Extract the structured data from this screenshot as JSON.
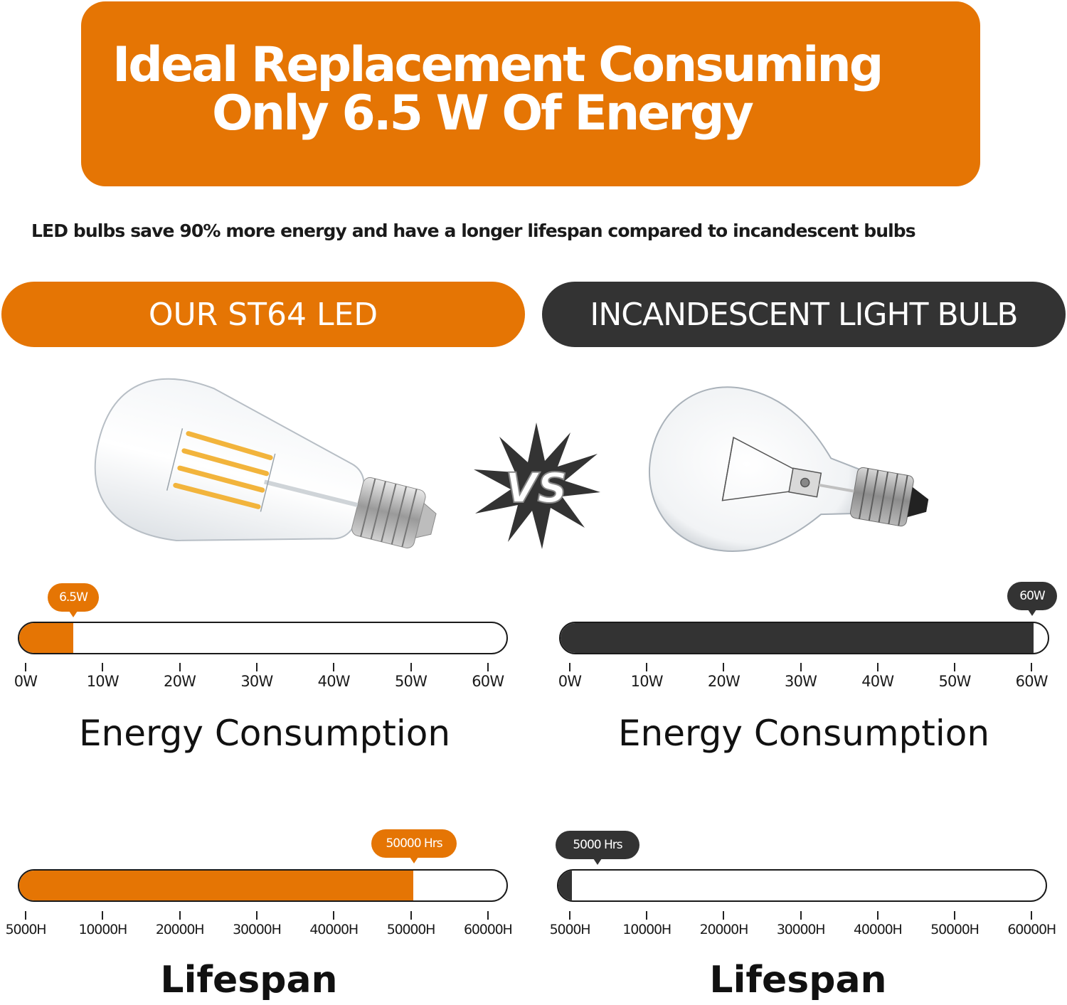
{
  "header": {
    "title_line1": "Ideal Replacement Consuming",
    "title_line2": "Only 6.5 W Of Energy",
    "subtitle": "LED bulbs save 90% more energy and have a longer lifespan compared to incandescent bulbs"
  },
  "colors": {
    "accent_orange": "#e57504",
    "dark_gray": "#333333",
    "background": "#ffffff"
  },
  "left": {
    "label": "OUR ST64 LED",
    "image": "st64-led-filament-bulb",
    "energy": {
      "bubble": "6.5W",
      "ticks": [
        "0W",
        "10W",
        "20W",
        "30W",
        "40W",
        "50W",
        "60W"
      ],
      "title": "Energy Consumption"
    },
    "lifespan": {
      "bubble": "50000 Hrs",
      "ticks": [
        "5000H",
        "10000H",
        "20000H",
        "30000H",
        "40000H",
        "50000H",
        "60000H"
      ],
      "title": "Lifespan"
    }
  },
  "right": {
    "label": "INCANDESCENT LIGHT BULB",
    "image": "incandescent-a19-bulb",
    "energy": {
      "bubble": "60W",
      "ticks": [
        "0W",
        "10W",
        "20W",
        "30W",
        "40W",
        "50W",
        "60W"
      ],
      "title": "Energy Consumption"
    },
    "lifespan": {
      "bubble": "5000 Hrs",
      "ticks": [
        "5000H",
        "10000H",
        "20000H",
        "30000H",
        "40000H",
        "50000H",
        "60000H"
      ],
      "title": "Lifespan"
    }
  },
  "vs_badge": "VS",
  "chart_data": [
    {
      "type": "bar",
      "title": "Energy Consumption",
      "orientation": "horizontal",
      "categories": [
        "OUR ST64 LED",
        "INCANDESCENT LIGHT BULB"
      ],
      "values": [
        6.5,
        60
      ],
      "unit": "W",
      "xlim": [
        0,
        60
      ],
      "tick_labels": [
        "0W",
        "10W",
        "20W",
        "30W",
        "40W",
        "50W",
        "60W"
      ],
      "data_labels": [
        "6.5W",
        "60W"
      ],
      "colors": [
        "#e57504",
        "#333333"
      ],
      "grid": false
    },
    {
      "type": "bar",
      "title": "Lifespan",
      "orientation": "horizontal",
      "categories": [
        "OUR ST64 LED",
        "INCANDESCENT LIGHT BULB"
      ],
      "values": [
        50000,
        5000
      ],
      "unit": "hours",
      "xlim": [
        5000,
        60000
      ],
      "tick_labels": [
        "5000H",
        "10000H",
        "20000H",
        "30000H",
        "40000H",
        "50000H",
        "60000H"
      ],
      "data_labels": [
        "50000 Hrs",
        "5000 Hrs"
      ],
      "colors": [
        "#e57504",
        "#333333"
      ],
      "grid": false
    }
  ]
}
